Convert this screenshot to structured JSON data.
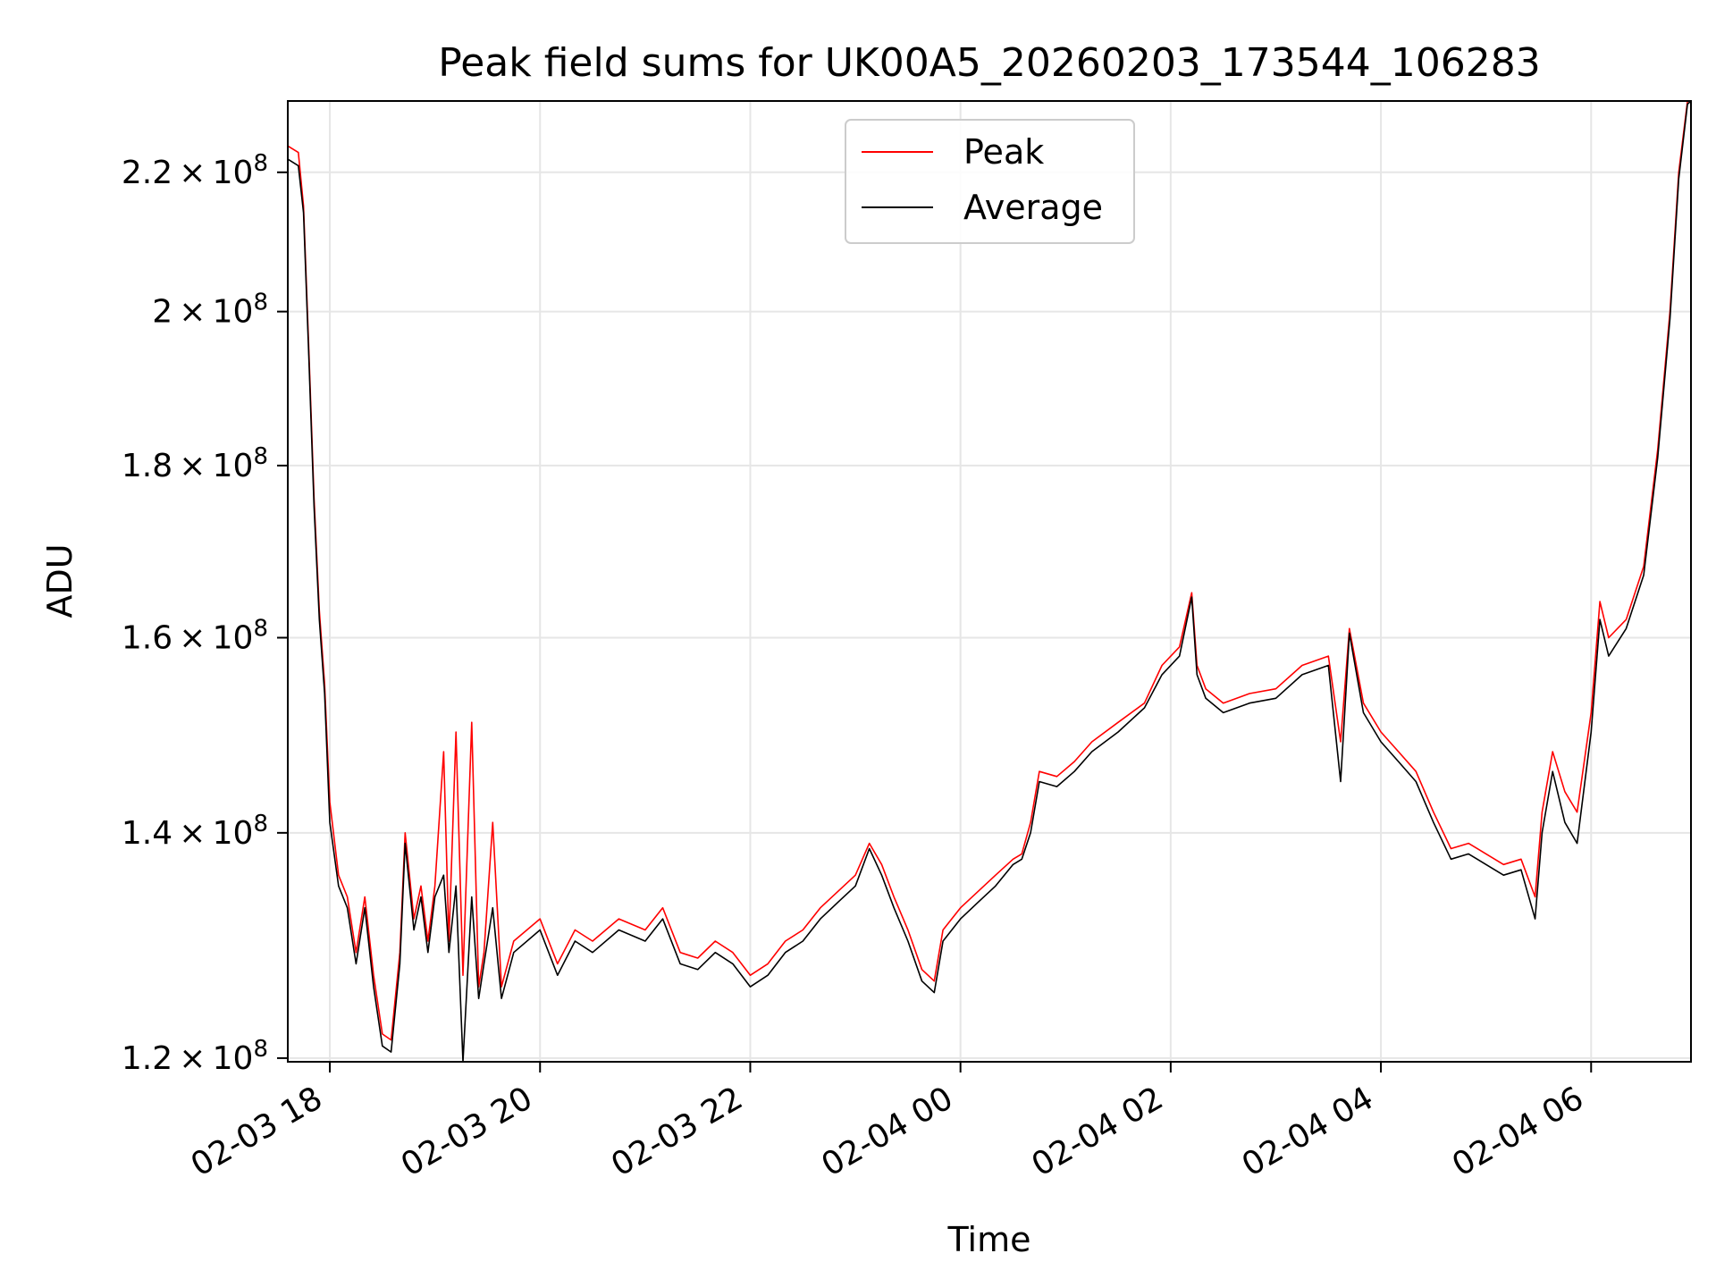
{
  "chart_data": {
    "type": "line",
    "title": "Peak field sums for UK00A5_20260203_173544_106283",
    "xlabel": "Time",
    "ylabel": "ADU",
    "y_scale": "log",
    "x_range": [
      "2026-02-03 17:36",
      "2026-02-04 06:57"
    ],
    "ylim": [
      119700000,
      231000000
    ],
    "x_ticks": [
      {
        "t": "2026-02-03 18:00",
        "label": "02-03 18"
      },
      {
        "t": "2026-02-03 20:00",
        "label": "02-03 20"
      },
      {
        "t": "2026-02-03 22:00",
        "label": "02-03 22"
      },
      {
        "t": "2026-02-04 00:00",
        "label": "02-04 00"
      },
      {
        "t": "2026-02-04 02:00",
        "label": "02-04 02"
      },
      {
        "t": "2026-02-04 04:00",
        "label": "02-04 04"
      },
      {
        "t": "2026-02-04 06:00",
        "label": "02-04 06"
      }
    ],
    "y_ticks": [
      {
        "v": 120000000,
        "mant": "1.2",
        "exp": "8"
      },
      {
        "v": 140000000,
        "mant": "1.4",
        "exp": "8"
      },
      {
        "v": 160000000,
        "mant": "1.6",
        "exp": "8"
      },
      {
        "v": 180000000,
        "mant": "1.8",
        "exp": "8"
      },
      {
        "v": 200000000,
        "mant": "2",
        "exp": "8"
      },
      {
        "v": 220000000,
        "mant": "2.2",
        "exp": "8"
      }
    ],
    "grid": true,
    "legend_position": "top-center",
    "series": [
      {
        "name": "Peak",
        "color": "#ff0000",
        "points": [
          [
            "2026-02-03 17:36",
            224000000
          ],
          [
            "2026-02-03 17:42",
            223000000
          ],
          [
            "2026-02-03 17:45",
            215000000
          ],
          [
            "2026-02-03 17:48",
            195000000
          ],
          [
            "2026-02-03 17:51",
            176000000
          ],
          [
            "2026-02-03 17:54",
            163000000
          ],
          [
            "2026-02-03 17:57",
            155000000
          ],
          [
            "2026-02-03 18:00",
            143000000
          ],
          [
            "2026-02-03 18:05",
            136000000
          ],
          [
            "2026-02-03 18:10",
            134000000
          ],
          [
            "2026-02-03 18:15",
            129000000
          ],
          [
            "2026-02-03 18:20",
            134000000
          ],
          [
            "2026-02-03 18:25",
            127000000
          ],
          [
            "2026-02-03 18:30",
            122000000
          ],
          [
            "2026-02-03 18:35",
            121500000
          ],
          [
            "2026-02-03 18:40",
            129000000
          ],
          [
            "2026-02-03 18:43",
            140000000
          ],
          [
            "2026-02-03 18:48",
            132000000
          ],
          [
            "2026-02-03 18:52",
            135000000
          ],
          [
            "2026-02-03 18:56",
            130000000
          ],
          [
            "2026-02-03 19:00",
            135000000
          ],
          [
            "2026-02-03 19:05",
            148000000
          ],
          [
            "2026-02-03 19:08",
            130000000
          ],
          [
            "2026-02-03 19:12",
            150000000
          ],
          [
            "2026-02-03 19:16",
            127000000
          ],
          [
            "2026-02-03 19:21",
            151000000
          ],
          [
            "2026-02-03 19:25",
            126000000
          ],
          [
            "2026-02-03 19:28",
            129000000
          ],
          [
            "2026-02-03 19:33",
            141000000
          ],
          [
            "2026-02-03 19:38",
            126000000
          ],
          [
            "2026-02-03 19:45",
            130000000
          ],
          [
            "2026-02-03 20:00",
            132000000
          ],
          [
            "2026-02-03 20:10",
            128000000
          ],
          [
            "2026-02-03 20:20",
            131000000
          ],
          [
            "2026-02-03 20:30",
            130000000
          ],
          [
            "2026-02-03 20:45",
            132000000
          ],
          [
            "2026-02-03 21:00",
            131000000
          ],
          [
            "2026-02-03 21:10",
            133000000
          ],
          [
            "2026-02-03 21:20",
            129000000
          ],
          [
            "2026-02-03 21:30",
            128500000
          ],
          [
            "2026-02-03 21:40",
            130000000
          ],
          [
            "2026-02-03 21:50",
            129000000
          ],
          [
            "2026-02-03 22:00",
            127000000
          ],
          [
            "2026-02-03 22:10",
            128000000
          ],
          [
            "2026-02-03 22:20",
            130000000
          ],
          [
            "2026-02-03 22:30",
            131000000
          ],
          [
            "2026-02-03 22:40",
            133000000
          ],
          [
            "2026-02-03 22:50",
            134500000
          ],
          [
            "2026-02-03 23:00",
            136000000
          ],
          [
            "2026-02-03 23:08",
            139000000
          ],
          [
            "2026-02-03 23:15",
            137000000
          ],
          [
            "2026-02-03 23:22",
            134000000
          ],
          [
            "2026-02-03 23:30",
            131000000
          ],
          [
            "2026-02-03 23:38",
            127500000
          ],
          [
            "2026-02-03 23:45",
            126500000
          ],
          [
            "2026-02-03 23:50",
            131000000
          ],
          [
            "2026-02-04 00:00",
            133000000
          ],
          [
            "2026-02-04 00:10",
            134500000
          ],
          [
            "2026-02-04 00:20",
            136000000
          ],
          [
            "2026-02-04 00:30",
            137500000
          ],
          [
            "2026-02-04 00:35",
            138000000
          ],
          [
            "2026-02-04 00:40",
            141000000
          ],
          [
            "2026-02-04 00:45",
            146000000
          ],
          [
            "2026-02-04 00:55",
            145500000
          ],
          [
            "2026-02-04 01:05",
            147000000
          ],
          [
            "2026-02-04 01:15",
            149000000
          ],
          [
            "2026-02-04 01:30",
            151000000
          ],
          [
            "2026-02-04 01:45",
            153000000
          ],
          [
            "2026-02-04 01:55",
            157000000
          ],
          [
            "2026-02-04 02:05",
            159000000
          ],
          [
            "2026-02-04 02:12",
            165000000
          ],
          [
            "2026-02-04 02:15",
            157000000
          ],
          [
            "2026-02-04 02:20",
            154500000
          ],
          [
            "2026-02-04 02:30",
            153000000
          ],
          [
            "2026-02-04 02:45",
            154000000
          ],
          [
            "2026-02-04 03:00",
            154500000
          ],
          [
            "2026-02-04 03:15",
            157000000
          ],
          [
            "2026-02-04 03:30",
            158000000
          ],
          [
            "2026-02-04 03:37",
            149000000
          ],
          [
            "2026-02-04 03:42",
            161000000
          ],
          [
            "2026-02-04 03:50",
            153000000
          ],
          [
            "2026-02-04 04:00",
            150000000
          ],
          [
            "2026-02-04 04:10",
            148000000
          ],
          [
            "2026-02-04 04:20",
            146000000
          ],
          [
            "2026-02-04 04:30",
            142000000
          ],
          [
            "2026-02-04 04:40",
            138500000
          ],
          [
            "2026-02-04 04:50",
            139000000
          ],
          [
            "2026-02-04 05:00",
            138000000
          ],
          [
            "2026-02-04 05:10",
            137000000
          ],
          [
            "2026-02-04 05:20",
            137500000
          ],
          [
            "2026-02-04 05:28",
            134000000
          ],
          [
            "2026-02-04 05:32",
            142000000
          ],
          [
            "2026-02-04 05:38",
            148000000
          ],
          [
            "2026-02-04 05:45",
            144000000
          ],
          [
            "2026-02-04 05:52",
            142000000
          ],
          [
            "2026-02-04 06:00",
            152000000
          ],
          [
            "2026-02-04 06:05",
            164000000
          ],
          [
            "2026-02-04 06:10",
            160000000
          ],
          [
            "2026-02-04 06:20",
            162000000
          ],
          [
            "2026-02-04 06:30",
            168000000
          ],
          [
            "2026-02-04 06:38",
            182000000
          ],
          [
            "2026-02-04 06:45",
            200000000
          ],
          [
            "2026-02-04 06:50",
            220000000
          ],
          [
            "2026-02-04 06:55",
            231000000
          ],
          [
            "2026-02-04 06:57",
            231000000
          ]
        ]
      },
      {
        "name": "Average",
        "color": "#000000",
        "points": [
          [
            "2026-02-03 17:36",
            222000000
          ],
          [
            "2026-02-03 17:42",
            221000000
          ],
          [
            "2026-02-03 17:45",
            214000000
          ],
          [
            "2026-02-03 17:48",
            194000000
          ],
          [
            "2026-02-03 17:51",
            175000000
          ],
          [
            "2026-02-03 17:54",
            162000000
          ],
          [
            "2026-02-03 17:57",
            154000000
          ],
          [
            "2026-02-03 18:00",
            141000000
          ],
          [
            "2026-02-03 18:05",
            135000000
          ],
          [
            "2026-02-03 18:10",
            133000000
          ],
          [
            "2026-02-03 18:15",
            128000000
          ],
          [
            "2026-02-03 18:20",
            133000000
          ],
          [
            "2026-02-03 18:25",
            126000000
          ],
          [
            "2026-02-03 18:30",
            121000000
          ],
          [
            "2026-02-03 18:35",
            120500000
          ],
          [
            "2026-02-03 18:40",
            128000000
          ],
          [
            "2026-02-03 18:43",
            139000000
          ],
          [
            "2026-02-03 18:48",
            131000000
          ],
          [
            "2026-02-03 18:52",
            134000000
          ],
          [
            "2026-02-03 18:56",
            129000000
          ],
          [
            "2026-02-03 19:00",
            134000000
          ],
          [
            "2026-02-03 19:05",
            136000000
          ],
          [
            "2026-02-03 19:08",
            129000000
          ],
          [
            "2026-02-03 19:12",
            135000000
          ],
          [
            "2026-02-03 19:16",
            119700000
          ],
          [
            "2026-02-03 19:21",
            134000000
          ],
          [
            "2026-02-03 19:25",
            125000000
          ],
          [
            "2026-02-03 19:28",
            128000000
          ],
          [
            "2026-02-03 19:33",
            133000000
          ],
          [
            "2026-02-03 19:38",
            125000000
          ],
          [
            "2026-02-03 19:45",
            129000000
          ],
          [
            "2026-02-03 20:00",
            131000000
          ],
          [
            "2026-02-03 20:10",
            127000000
          ],
          [
            "2026-02-03 20:20",
            130000000
          ],
          [
            "2026-02-03 20:30",
            129000000
          ],
          [
            "2026-02-03 20:45",
            131000000
          ],
          [
            "2026-02-03 21:00",
            130000000
          ],
          [
            "2026-02-03 21:10",
            132000000
          ],
          [
            "2026-02-03 21:20",
            128000000
          ],
          [
            "2026-02-03 21:30",
            127500000
          ],
          [
            "2026-02-03 21:40",
            129000000
          ],
          [
            "2026-02-03 21:50",
            128000000
          ],
          [
            "2026-02-03 22:00",
            126000000
          ],
          [
            "2026-02-03 22:10",
            127000000
          ],
          [
            "2026-02-03 22:20",
            129000000
          ],
          [
            "2026-02-03 22:30",
            130000000
          ],
          [
            "2026-02-03 22:40",
            132000000
          ],
          [
            "2026-02-03 22:50",
            133500000
          ],
          [
            "2026-02-03 23:00",
            135000000
          ],
          [
            "2026-02-03 23:08",
            138500000
          ],
          [
            "2026-02-03 23:15",
            136000000
          ],
          [
            "2026-02-03 23:22",
            133000000
          ],
          [
            "2026-02-03 23:30",
            130000000
          ],
          [
            "2026-02-03 23:38",
            126500000
          ],
          [
            "2026-02-03 23:45",
            125500000
          ],
          [
            "2026-02-03 23:50",
            130000000
          ],
          [
            "2026-02-04 00:00",
            132000000
          ],
          [
            "2026-02-04 00:10",
            133500000
          ],
          [
            "2026-02-04 00:20",
            135000000
          ],
          [
            "2026-02-04 00:30",
            137000000
          ],
          [
            "2026-02-04 00:35",
            137500000
          ],
          [
            "2026-02-04 00:40",
            140000000
          ],
          [
            "2026-02-04 00:45",
            145000000
          ],
          [
            "2026-02-04 00:55",
            144500000
          ],
          [
            "2026-02-04 01:05",
            146000000
          ],
          [
            "2026-02-04 01:15",
            148000000
          ],
          [
            "2026-02-04 01:30",
            150000000
          ],
          [
            "2026-02-04 01:45",
            152500000
          ],
          [
            "2026-02-04 01:55",
            156000000
          ],
          [
            "2026-02-04 02:05",
            158000000
          ],
          [
            "2026-02-04 02:12",
            164500000
          ],
          [
            "2026-02-04 02:15",
            156000000
          ],
          [
            "2026-02-04 02:20",
            153500000
          ],
          [
            "2026-02-04 02:30",
            152000000
          ],
          [
            "2026-02-04 02:45",
            153000000
          ],
          [
            "2026-02-04 03:00",
            153500000
          ],
          [
            "2026-02-04 03:15",
            156000000
          ],
          [
            "2026-02-04 03:30",
            157000000
          ],
          [
            "2026-02-04 03:37",
            145000000
          ],
          [
            "2026-02-04 03:42",
            160500000
          ],
          [
            "2026-02-04 03:50",
            152000000
          ],
          [
            "2026-02-04 04:00",
            149000000
          ],
          [
            "2026-02-04 04:10",
            147000000
          ],
          [
            "2026-02-04 04:20",
            145000000
          ],
          [
            "2026-02-04 04:30",
            141000000
          ],
          [
            "2026-02-04 04:40",
            137500000
          ],
          [
            "2026-02-04 04:50",
            138000000
          ],
          [
            "2026-02-04 05:00",
            137000000
          ],
          [
            "2026-02-04 05:10",
            136000000
          ],
          [
            "2026-02-04 05:20",
            136500000
          ],
          [
            "2026-02-04 05:28",
            132000000
          ],
          [
            "2026-02-04 05:32",
            140000000
          ],
          [
            "2026-02-04 05:38",
            146000000
          ],
          [
            "2026-02-04 05:45",
            141000000
          ],
          [
            "2026-02-04 05:52",
            139000000
          ],
          [
            "2026-02-04 06:00",
            150000000
          ],
          [
            "2026-02-04 06:05",
            162000000
          ],
          [
            "2026-02-04 06:10",
            158000000
          ],
          [
            "2026-02-04 06:20",
            161000000
          ],
          [
            "2026-02-04 06:30",
            167000000
          ],
          [
            "2026-02-04 06:38",
            181000000
          ],
          [
            "2026-02-04 06:45",
            199000000
          ],
          [
            "2026-02-04 06:50",
            219000000
          ],
          [
            "2026-02-04 06:55",
            230500000
          ],
          [
            "2026-02-04 06:57",
            231000000
          ]
        ]
      }
    ]
  }
}
